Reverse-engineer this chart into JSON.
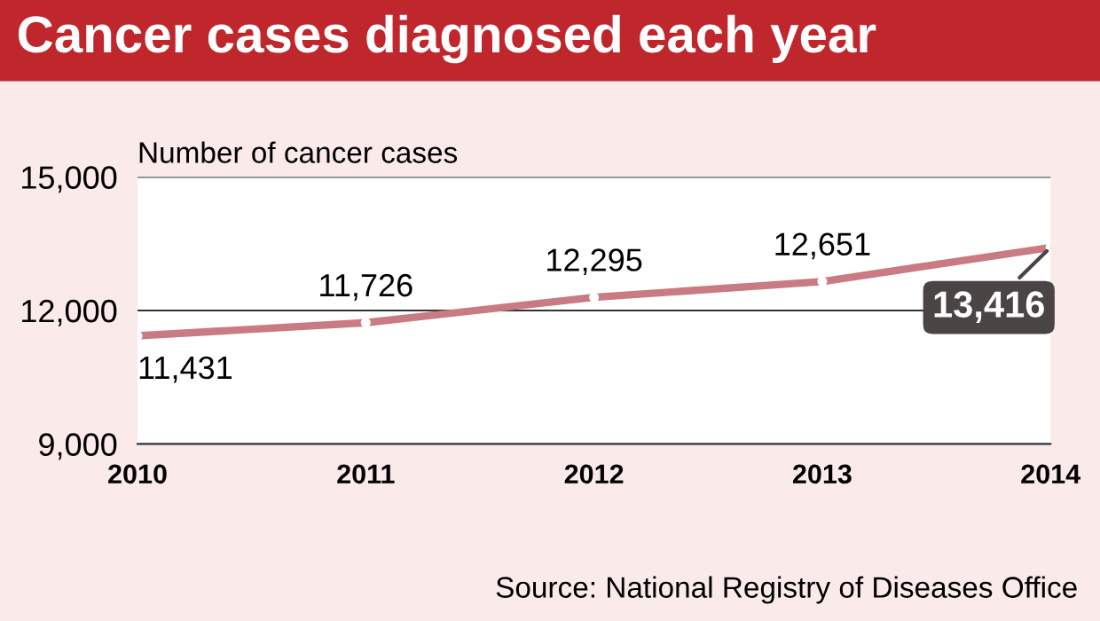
{
  "chart_data": {
    "type": "line",
    "title": "Cancer cases diagnosed each year",
    "ylabel": "Number of cancer cases",
    "x": [
      2010,
      2011,
      2012,
      2013,
      2014
    ],
    "series": [
      {
        "color": "#c97a82",
        "values": [
          11431,
          11726,
          12295,
          12651,
          13416
        ],
        "value_labels": [
          "11,431",
          "11,726",
          "12,295",
          "12,651",
          "13,416"
        ]
      }
    ],
    "xlim": [
      2010,
      2014
    ],
    "xticks": [
      2010,
      2011,
      2012,
      2013,
      2014
    ],
    "ylim": [
      9000,
      15000
    ],
    "yticks": [
      {
        "value": 9000,
        "label": "9,000"
      },
      {
        "value": 12000,
        "label": "12,000"
      },
      {
        "value": 15000,
        "label": "15,000"
      }
    ],
    "grid": "y",
    "marker": "circle",
    "line_style": "solid",
    "annotations": [
      "Source: National Registry of Diseases Office"
    ]
  }
}
